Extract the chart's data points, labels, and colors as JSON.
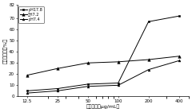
{
  "x": [
    12.5,
    25,
    50,
    100,
    200,
    400
  ],
  "series": [
    {
      "label": "pH17.8",
      "values": [
        5,
        7,
        11,
        12,
        67,
        72
      ],
      "marker": "s",
      "markersize": 2.0
    },
    {
      "label": "已H7.2",
      "values": [
        19,
        25,
        30,
        31,
        33,
        36
      ],
      "marker": "^",
      "markersize": 2.5
    },
    {
      "label": "pH7.4",
      "values": [
        3,
        5,
        9,
        10,
        24,
        32
      ],
      "marker": "^",
      "markersize": 2.0
    }
  ],
  "xlabel": "抑菌浓度（μg/mL）",
  "ylabel": "抑菌抑制率（%）",
  "ylim": [
    0,
    82
  ],
  "yticks": [
    0,
    10,
    20,
    30,
    40,
    50,
    60,
    70,
    82
  ],
  "xtick_labels": [
    "12.5",
    "25",
    "50",
    "100",
    "200",
    "400"
  ],
  "legend_labels": [
    "pH17.8",
    "已H7.2",
    "pH7.4"
  ],
  "legend_loc": "upper left",
  "linewidth": 0.7,
  "line_color": "black"
}
